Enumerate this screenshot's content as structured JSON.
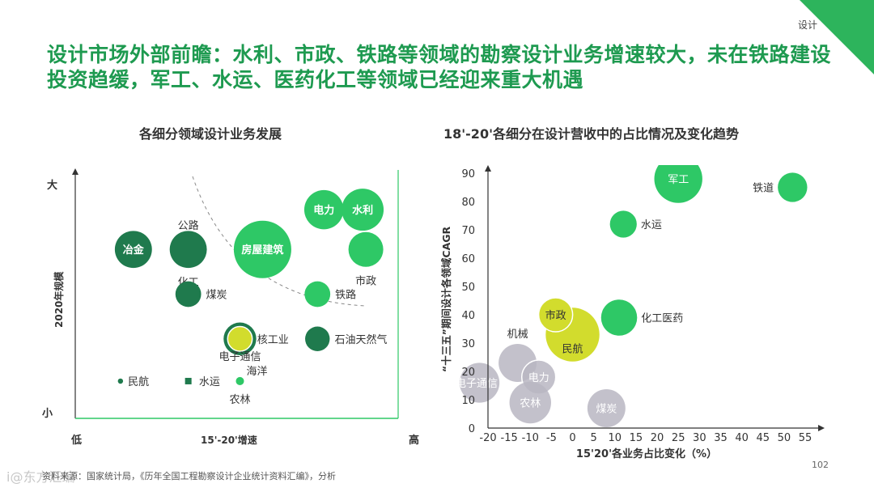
{
  "corner_label": "设计",
  "title": "设计市场外部前瞻：水利、市政、铁路等领域的勘察设计业务增速较大，未在铁路建设投资趋缓，军工、水运、医药化工等领域已经迎来重大机遇",
  "footer": "资料来源：国家统计局，《历年全国工程勘察设计企业统计资料汇编》，分析",
  "watermark": "i@东方汇编",
  "page_number": "102",
  "colors": {
    "dark_green": "#1f7a4d",
    "green": "#2ec866",
    "yellow": "#d2dc2d",
    "gray": "#b9b6c2",
    "title_green": "#1e9a50"
  },
  "chart_data": [
    {
      "type": "bubble-matrix",
      "title": "各细分领域设计业务发展",
      "xlabel": "15'-20'增速",
      "ylabel": "2020年规模",
      "x_low": "低",
      "x_high": "高",
      "y_low": "小",
      "y_high": "大",
      "xlim": [
        0,
        10
      ],
      "ylim": [
        0,
        10
      ],
      "bubbles": [
        {
          "name": "冶金",
          "x": 1.8,
          "y": 6.8,
          "size": 2.5,
          "color": "dark",
          "label_pos": "inside"
        },
        {
          "name": "公路",
          "x": 3.5,
          "y": 6.8,
          "size": 0.6,
          "color": "yellow",
          "ring": "dark",
          "label_pos": "above"
        },
        {
          "name": "化工",
          "x": 3.5,
          "y": 6.8,
          "size": 2.5,
          "color": "dark",
          "label_pos": "below"
        },
        {
          "name": "房屋建筑",
          "x": 5.8,
          "y": 6.8,
          "size": 6.0,
          "color": "green",
          "label_pos": "inside"
        },
        {
          "name": "电力",
          "x": 7.7,
          "y": 8.4,
          "size": 2.8,
          "color": "green",
          "label_pos": "inside"
        },
        {
          "name": "水利",
          "x": 8.9,
          "y": 8.4,
          "size": 3.2,
          "color": "green",
          "label_pos": "inside"
        },
        {
          "name": "市政",
          "x": 9.0,
          "y": 6.8,
          "size": 2.2,
          "color": "green",
          "label_pos": "below"
        },
        {
          "name": "煤炭",
          "x": 3.5,
          "y": 5.0,
          "size": 1.2,
          "color": "dark",
          "label_pos": "right"
        },
        {
          "name": "铁路",
          "x": 7.5,
          "y": 5.0,
          "size": 1.2,
          "color": "green",
          "label_pos": "right"
        },
        {
          "name": "核工业",
          "x": 5.1,
          "y": 3.2,
          "size": 1.1,
          "color": "yellow",
          "ring": "dark",
          "label_pos": "right"
        },
        {
          "name": "石油天然气",
          "x": 7.5,
          "y": 3.2,
          "size": 1.1,
          "color": "dark",
          "label_pos": "right"
        },
        {
          "name": "电子通信",
          "x": 5.1,
          "y": 3.2,
          "size": 1.1,
          "color": "yellow",
          "label_pos": "below-far"
        },
        {
          "name": "民航",
          "x": 1.4,
          "y": 1.5,
          "size": 0.05,
          "color": "dark",
          "label_pos": "right"
        },
        {
          "name": "水运",
          "x": 3.5,
          "y": 1.5,
          "size": 0.25,
          "color": "dark",
          "label_pos": "right",
          "shape": "square"
        },
        {
          "name": "海洋",
          "x": 5.1,
          "y": 1.5,
          "size": 0.12,
          "color": "green",
          "label_pos": "above-right"
        },
        {
          "name": "农林",
          "x": 5.1,
          "y": 1.5,
          "size": 0.12,
          "color": "green",
          "label_pos": "below"
        }
      ]
    },
    {
      "type": "bubble",
      "title": "18'-20'各细分在设计营收中的占比情况及变化趋势",
      "xlabel": "15'20'各业务占比变化（%）",
      "ylabel": "“十三五”期间设计各领域CAGR",
      "xlim": [
        -20,
        55
      ],
      "ylim": [
        0,
        90
      ],
      "xticks": [
        -20,
        -15,
        -10,
        -5,
        0,
        5,
        10,
        15,
        20,
        25,
        30,
        35,
        40,
        45,
        50,
        55
      ],
      "yticks": [
        0,
        10,
        20,
        30,
        40,
        50,
        60,
        70,
        80,
        90
      ],
      "grid": false,
      "bubbles": [
        {
          "name": "军工",
          "x": 25,
          "y": 88,
          "size": 8,
          "color": "green",
          "label_pos": "inside"
        },
        {
          "name": "铁道",
          "x": 52,
          "y": 85,
          "size": 3,
          "color": "green",
          "label_pos": "left"
        },
        {
          "name": "水运",
          "x": 12,
          "y": 72,
          "size": 2.5,
          "color": "green",
          "label_pos": "right"
        },
        {
          "name": "民航",
          "x": 0,
          "y": 33,
          "size": 10,
          "color": "yellow",
          "label_pos": "inside-low"
        },
        {
          "name": "市政",
          "x": -4,
          "y": 40,
          "size": 4,
          "color": "yellow",
          "ring": "white",
          "label_pos": "inside"
        },
        {
          "name": "化工医药",
          "x": 11,
          "y": 39,
          "size": 4.5,
          "color": "green",
          "label_pos": "right"
        },
        {
          "name": "机械",
          "x": -13,
          "y": 23,
          "size": 5,
          "color": "gray",
          "label_pos": "above"
        },
        {
          "name": "电力",
          "x": -8,
          "y": 18,
          "size": 4,
          "color": "gray",
          "ring": "white",
          "label_pos": "inside"
        },
        {
          "name": "电子通信",
          "x": -22,
          "y": 16,
          "size": 5.5,
          "color": "gray",
          "label_pos": "inside"
        },
        {
          "name": "农林",
          "x": -10,
          "y": 9,
          "size": 6,
          "color": "gray",
          "label_pos": "inside"
        },
        {
          "name": "煤炭",
          "x": 8,
          "y": 7,
          "size": 5,
          "color": "gray",
          "label_pos": "inside"
        }
      ]
    }
  ]
}
